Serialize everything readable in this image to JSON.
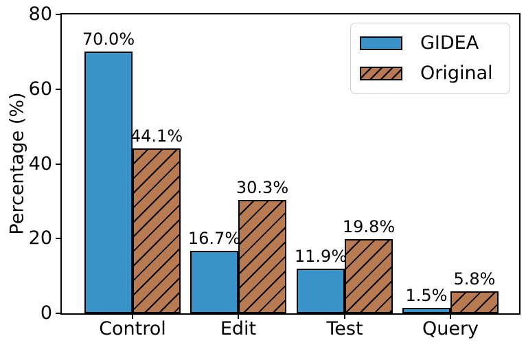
{
  "chart_data": {
    "type": "bar",
    "title": "",
    "xlabel": "",
    "ylabel": "Percentage (%)",
    "ylim": [
      0,
      80
    ],
    "yticks": [
      0,
      20,
      40,
      60,
      80
    ],
    "grid": false,
    "legend_position": "upper right",
    "categories": [
      "Control",
      "Edit",
      "Test",
      "Query"
    ],
    "series": [
      {
        "name": "GIDEA",
        "values": [
          70.0,
          16.7,
          11.9,
          1.5
        ],
        "labels": [
          "70.0%",
          "16.7%",
          "11.9%",
          "1.5%"
        ],
        "color": "#3A93C9",
        "hatch": false
      },
      {
        "name": "Original",
        "values": [
          44.1,
          30.3,
          19.8,
          5.8
        ],
        "labels": [
          "44.1%",
          "30.3%",
          "19.8%",
          "5.8%"
        ],
        "color": "#B87B51",
        "hatch": true
      }
    ],
    "colors": {
      "bar_edge": "#000000",
      "text": "#000000",
      "legend_border": "#cccccc",
      "background": "#ffffff"
    }
  }
}
